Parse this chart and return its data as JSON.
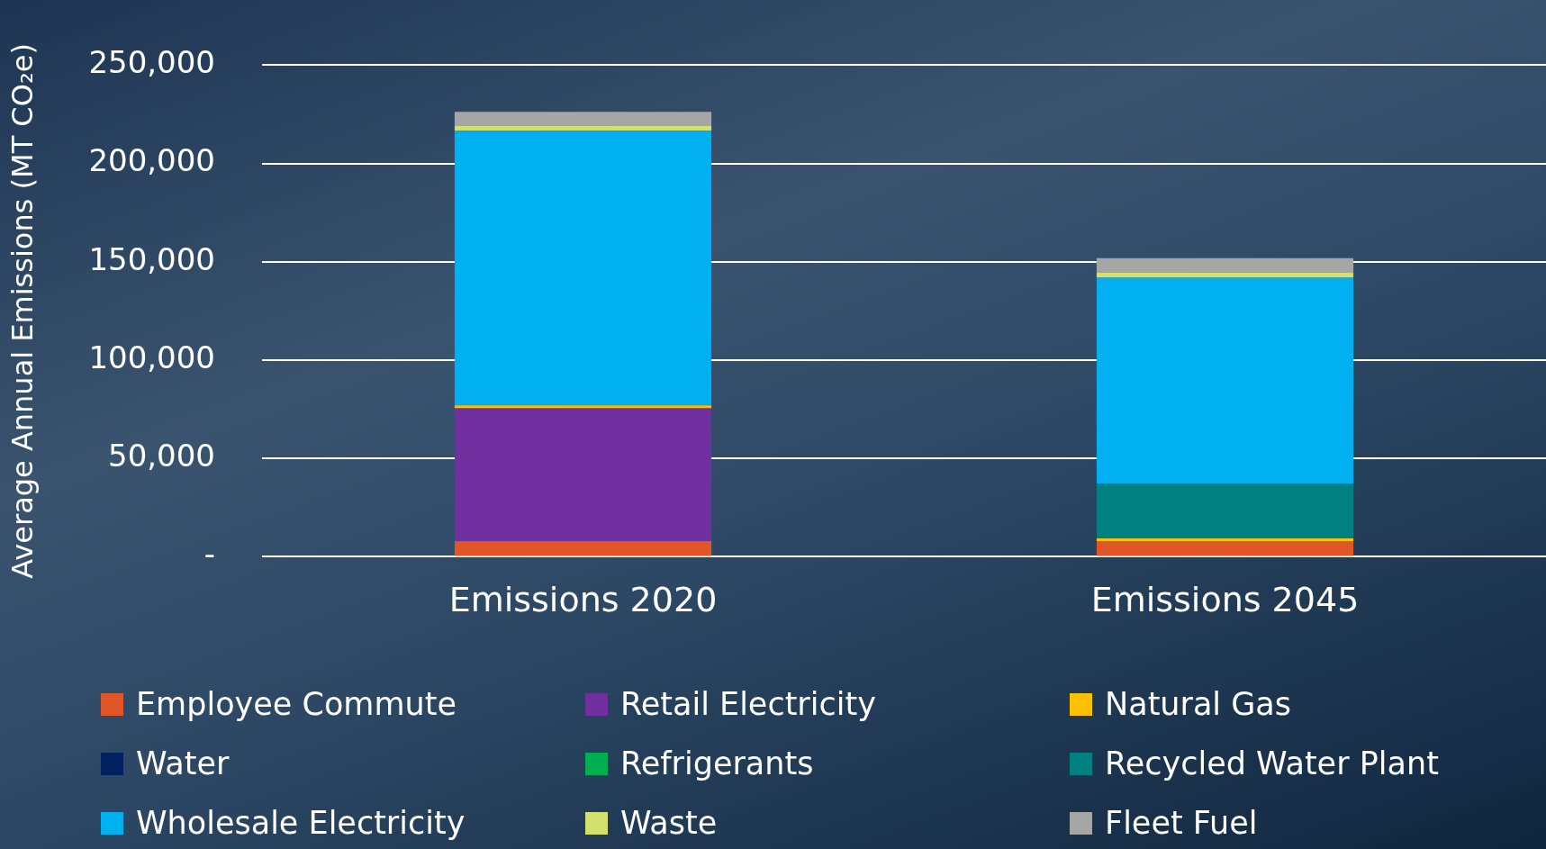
{
  "chart_data": {
    "type": "bar",
    "stacked": true,
    "ylabel": "Average Annual Emissions (MT CO₂e)",
    "categories": [
      "Emissions 2020",
      "Emissions 2045"
    ],
    "series": [
      {
        "name": "Employee Commute",
        "color": "#e05628",
        "values": [
          8000,
          8000
        ]
      },
      {
        "name": "Retail Electricity",
        "color": "#7030a0",
        "values": [
          67500,
          0
        ]
      },
      {
        "name": "Natural Gas",
        "color": "#ffc000",
        "values": [
          1500,
          1300
        ]
      },
      {
        "name": "Water",
        "color": "#002060",
        "values": [
          0,
          0
        ]
      },
      {
        "name": "Refrigerants",
        "color": "#00b050",
        "values": [
          0,
          0
        ]
      },
      {
        "name": "Recycled Water Plant",
        "color": "#008080",
        "values": [
          0,
          27800
        ]
      },
      {
        "name": "Wholesale Electricity",
        "color": "#00b0f0",
        "values": [
          139700,
          104800
        ]
      },
      {
        "name": "Waste",
        "color": "#d4e06e",
        "values": [
          2600,
          2800
        ]
      },
      {
        "name": "Fleet Fuel",
        "color": "#a6a6a6",
        "values": [
          7000,
          7100
        ]
      }
    ],
    "ylim": [
      0,
      250000
    ],
    "yticks": [
      {
        "value": 0,
        "label": "-"
      },
      {
        "value": 50000,
        "label": "50,000"
      },
      {
        "value": 100000,
        "label": "100,000"
      },
      {
        "value": 150000,
        "label": "150,000"
      },
      {
        "value": 200000,
        "label": "200,000"
      },
      {
        "value": 250000,
        "label": "250,000"
      }
    ],
    "grid": "y",
    "legend": "bottom"
  }
}
